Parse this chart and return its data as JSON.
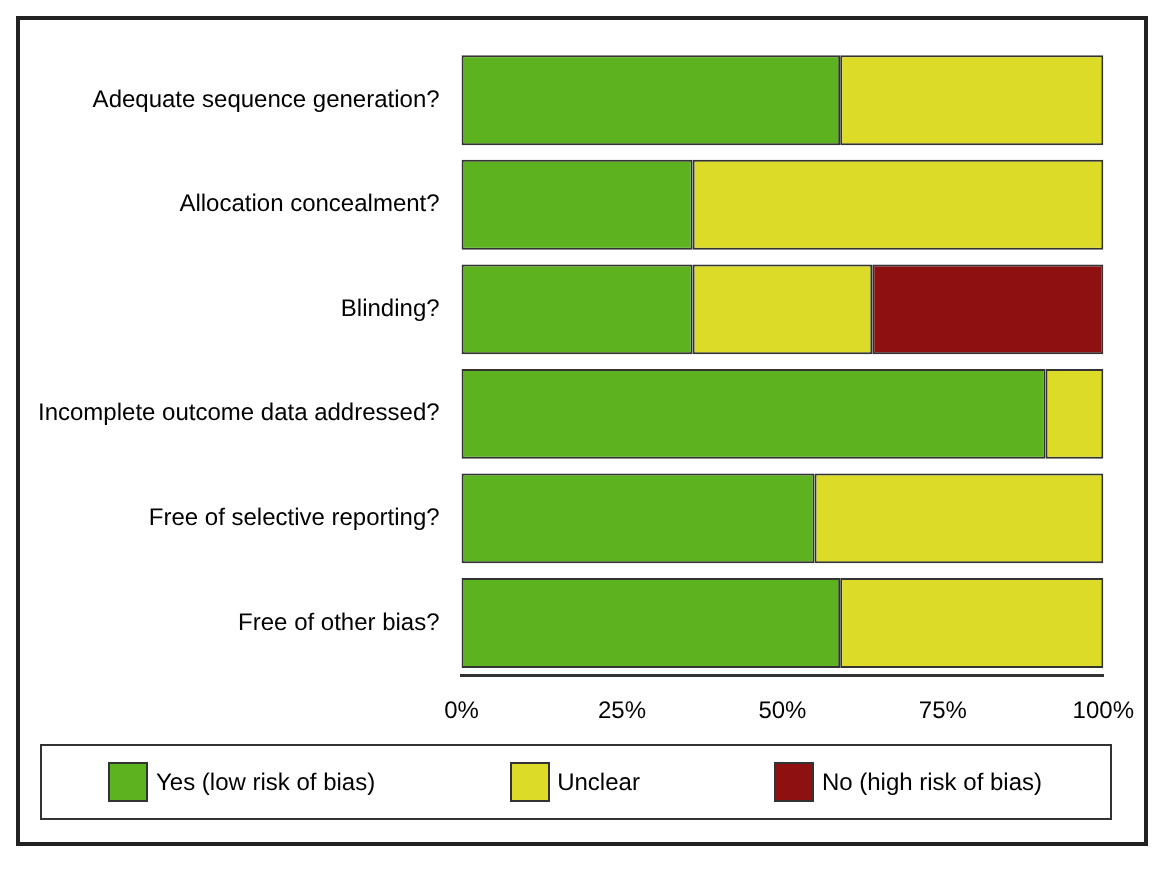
{
  "chart_data": {
    "type": "bar",
    "orientation": "horizontal",
    "stacked": true,
    "categories": [
      "Adequate sequence generation?",
      "Allocation concealment?",
      "Blinding?",
      "Incomplete outcome data addressed?",
      "Free of selective reporting?",
      "Free of other bias?"
    ],
    "series": [
      {
        "name": "Yes (low risk of bias)",
        "color": "#5db31f",
        "values": [
          59,
          36,
          36,
          91,
          55,
          59
        ]
      },
      {
        "name": "Unclear",
        "color": "#dcdc28",
        "values": [
          41,
          64,
          28,
          9,
          45,
          41
        ]
      },
      {
        "name": "No (high risk of bias)",
        "color": "#8e1010",
        "values": [
          0,
          0,
          36,
          0,
          0,
          0
        ]
      }
    ],
    "xlim": [
      0,
      100
    ],
    "xticks": [
      {
        "value": 0,
        "label": "0%"
      },
      {
        "value": 25,
        "label": "25%"
      },
      {
        "value": 50,
        "label": "50%"
      },
      {
        "value": 75,
        "label": "75%"
      },
      {
        "value": 100,
        "label": "100%"
      }
    ],
    "grid": false,
    "legend": "bottom"
  }
}
